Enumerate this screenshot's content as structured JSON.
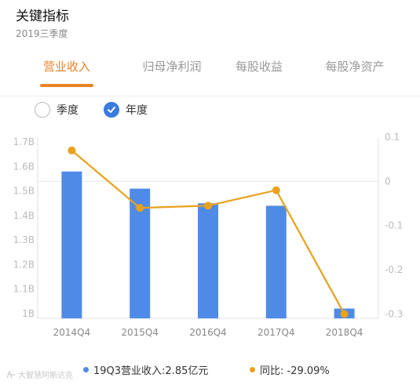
{
  "header": {
    "title": "关键指标",
    "subtitle": "2019三季度"
  },
  "tabs": [
    {
      "label": "营业收入",
      "active": true
    },
    {
      "label": "归母净利润",
      "active": false
    },
    {
      "label": "每股收益",
      "active": false
    },
    {
      "label": "每股净资产",
      "active": false
    }
  ],
  "period_options": [
    {
      "label": "季度",
      "selected": false
    },
    {
      "label": "年度",
      "selected": true
    }
  ],
  "colors": {
    "accent": "#e8832a",
    "bar": "#4f8be6",
    "line": "#eaa11c",
    "axis_text": "#bbbbbb"
  },
  "chart_data": {
    "type": "bar",
    "categories": [
      "2014Q4",
      "2015Q4",
      "2016Q4",
      "2017Q4",
      "2018Q4"
    ],
    "series": [
      {
        "name": "19Q3营业收入",
        "type": "bar",
        "axis": "left",
        "values": [
          1.58,
          1.51,
          1.45,
          1.44,
          1.02
        ]
      },
      {
        "name": "同比",
        "type": "line",
        "axis": "right",
        "values": [
          0.07,
          -0.06,
          -0.055,
          -0.02,
          -0.3
        ]
      }
    ],
    "y_left": {
      "ticks": [
        "1.7B",
        "1.6B",
        "1.5B",
        "1.4B",
        "1.3B",
        "1.2B",
        "1.1B",
        "1B"
      ],
      "range": [
        0.98,
        1.72
      ]
    },
    "y_right": {
      "ticks": [
        "0.1",
        "0",
        "-0.1",
        "-0.2",
        "-0.3"
      ],
      "range": [
        -0.31,
        0.1
      ]
    },
    "grid": false
  },
  "legend": {
    "revenue": "19Q3营业收入:2.85亿元",
    "yoy": "同比: -29.09%"
  },
  "watermark": "大智慧阿斯达克"
}
